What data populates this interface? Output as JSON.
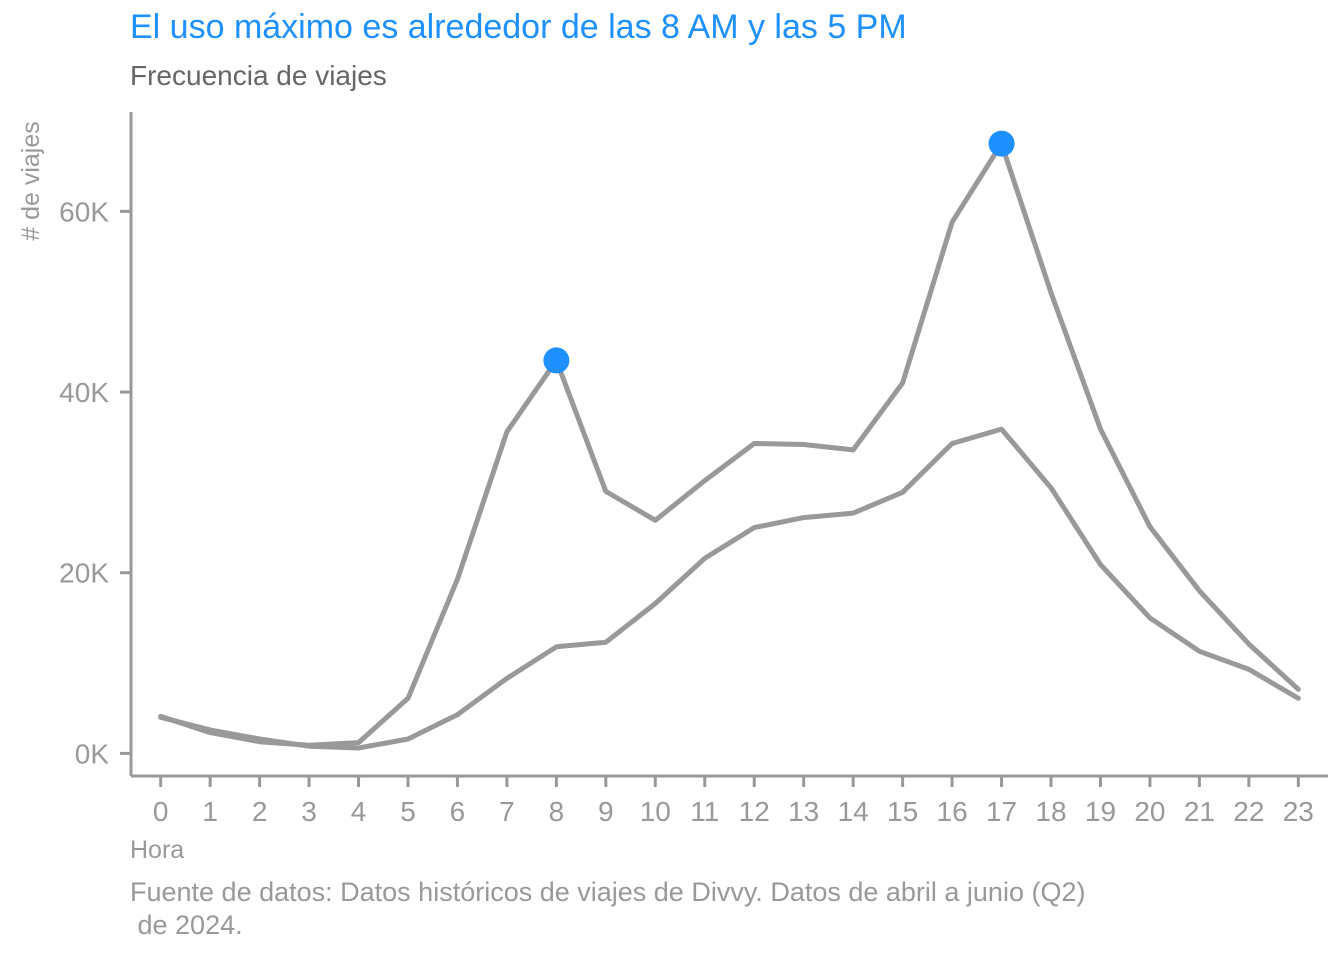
{
  "title": "El uso máximo es alrededor de las 8 AM y las 5 PM",
  "subtitle": "Frecuencia de viajes",
  "caption": "Fuente de datos: Datos históricos de viajes de Divvy. Datos de abril a junio (Q2)\n de 2024.",
  "colors": {
    "line": "#999999",
    "highlight": "#1E90FF",
    "axis": "#999999"
  },
  "chart_data": {
    "type": "line",
    "xlabel": "Hora",
    "ylabel": "# de viajes",
    "x": [
      0,
      1,
      2,
      3,
      4,
      5,
      6,
      7,
      8,
      9,
      10,
      11,
      12,
      13,
      14,
      15,
      16,
      17,
      18,
      19,
      20,
      21,
      22,
      23
    ],
    "x_tick_labels": [
      "0",
      "1",
      "2",
      "3",
      "4",
      "5",
      "6",
      "7",
      "8",
      "9",
      "10",
      "11",
      "12",
      "13",
      "14",
      "15",
      "16",
      "17",
      "18",
      "19",
      "20",
      "21",
      "22",
      "23"
    ],
    "y_ticks": [
      0,
      20000,
      40000,
      60000
    ],
    "y_tick_labels": [
      "0K",
      "20K",
      "40K",
      "60K"
    ],
    "ylim": [
      -2500,
      71000
    ],
    "xlim": [
      -0.6,
      23.6
    ],
    "series": [
      {
        "values": [
          4100,
          2300,
          1300,
          900,
          1200,
          6100,
          19300,
          35600,
          43500,
          29000,
          25800,
          30200,
          34300,
          34200,
          33600,
          41000,
          58800,
          67500,
          51000,
          35900,
          25100,
          18000,
          12100,
          7100
        ]
      },
      {
        "values": [
          4000,
          2600,
          1600,
          800,
          600,
          1600,
          4300,
          8300,
          11800,
          12300,
          16600,
          21600,
          25000,
          26100,
          26600,
          28900,
          34300,
          35900,
          29400,
          20900,
          15000,
          11300,
          9300,
          6100
        ]
      }
    ],
    "highlights": [
      {
        "x": 8,
        "y": 43500
      },
      {
        "x": 17,
        "y": 67500
      }
    ],
    "grid": false,
    "legend": "none"
  }
}
